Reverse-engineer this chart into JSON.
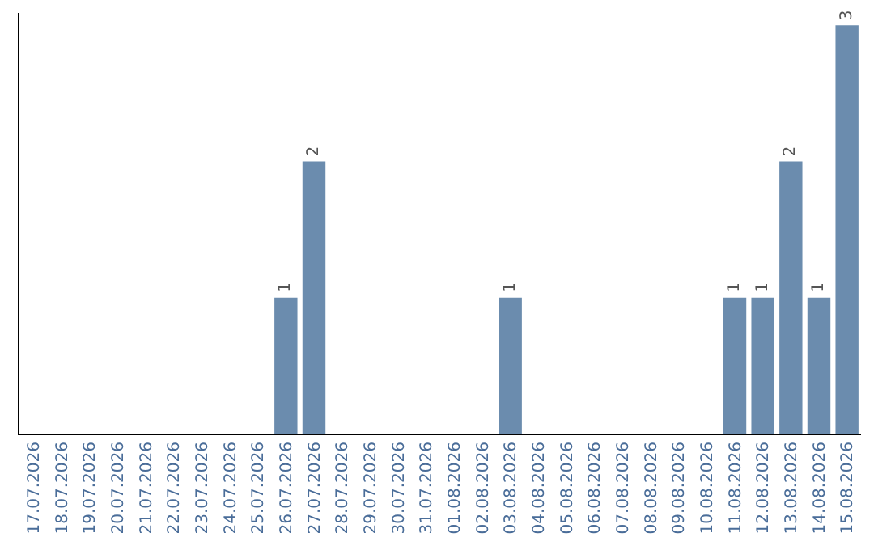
{
  "chart_data": {
    "type": "bar",
    "categories": [
      "17.07.2026",
      "18.07.2026",
      "19.07.2026",
      "20.07.2026",
      "21.07.2026",
      "22.07.2026",
      "23.07.2026",
      "24.07.2026",
      "25.07.2026",
      "26.07.2026",
      "27.07.2026",
      "28.07.2026",
      "29.07.2026",
      "30.07.2026",
      "31.07.2026",
      "01.08.2026",
      "02.08.2026",
      "03.08.2026",
      "04.08.2026",
      "05.08.2026",
      "06.08.2026",
      "07.08.2026",
      "08.08.2026",
      "09.08.2026",
      "10.08.2026",
      "11.08.2026",
      "12.08.2026",
      "13.08.2026",
      "14.08.2026",
      "15.08.2026"
    ],
    "values": [
      0,
      0,
      0,
      0,
      0,
      0,
      0,
      0,
      0,
      1,
      2,
      0,
      0,
      0,
      0,
      0,
      0,
      1,
      0,
      0,
      0,
      0,
      0,
      0,
      0,
      1,
      1,
      2,
      1,
      3
    ],
    "value_labels": [
      null,
      null,
      null,
      null,
      null,
      null,
      null,
      null,
      null,
      "1",
      "2",
      null,
      null,
      null,
      null,
      null,
      null,
      "1",
      null,
      null,
      null,
      null,
      null,
      null,
      null,
      "1",
      "1",
      "2",
      "1",
      "3"
    ],
    "color": "#6b8cae",
    "grid": false,
    "legend": false,
    "tick_labels": "x"
  }
}
